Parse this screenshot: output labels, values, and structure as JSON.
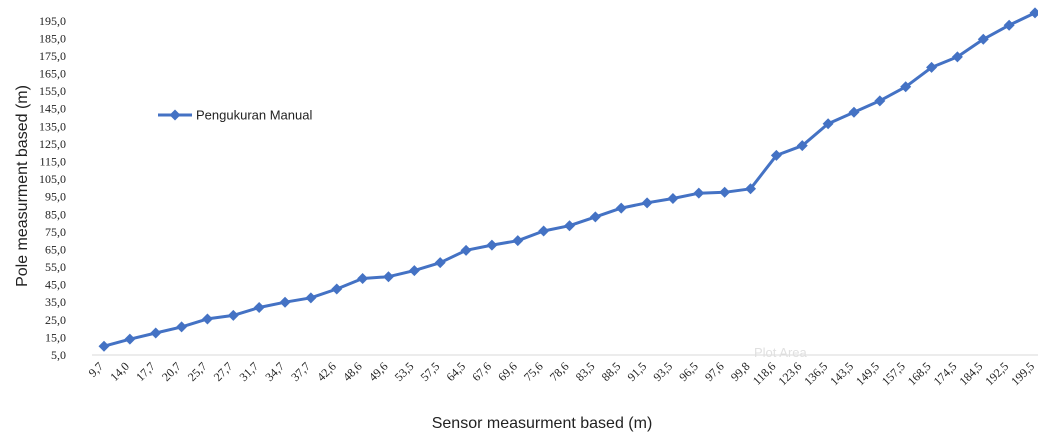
{
  "chart_data": {
    "type": "line",
    "title": "",
    "xlabel": "Sensor measurment based (m)",
    "ylabel": "Pole measurment based (m)",
    "categories": [
      "9,7",
      "14,0",
      "17,7",
      "20,7",
      "25,7",
      "27,7",
      "31,7",
      "34,7",
      "37,7",
      "42,6",
      "48,6",
      "49,6",
      "53,5",
      "57,5",
      "64,5",
      "67,6",
      "69,6",
      "75,6",
      "78,6",
      "83,5",
      "88,5",
      "91,5",
      "93,5",
      "96,5",
      "97,6",
      "99,8",
      "118,6",
      "123,6",
      "136,5",
      "143,5",
      "149,5",
      "157,5",
      "168,5",
      "174,5",
      "184,5",
      "192,5",
      "199,5"
    ],
    "series": [
      {
        "name": "Pengukuran Manual",
        "color": "#4472C4",
        "marker": "diamond",
        "values": [
          10,
          14,
          17.5,
          21,
          25.5,
          27.5,
          32,
          35,
          37.5,
          42.5,
          48.5,
          49.5,
          53,
          57.5,
          64.5,
          67.5,
          70,
          75.5,
          78.5,
          83.5,
          88.5,
          91.5,
          94,
          97,
          97.5,
          99.5,
          118.5,
          124,
          136.5,
          143,
          149.5,
          157.5,
          168.5,
          174.5,
          184.5,
          192.5,
          199.5
        ]
      }
    ],
    "yticks": [
      "5,0",
      "15,0",
      "25,0",
      "35,0",
      "45,0",
      "55,0",
      "65,0",
      "75,0",
      "85,0",
      "95,0",
      "105,0",
      "115,0",
      "125,0",
      "135,0",
      "145,0",
      "155,0",
      "165,0",
      "175,0",
      "185,0",
      "195,0"
    ],
    "ylim": [
      5,
      200
    ],
    "grid": false,
    "legend": "upper-left, inside plot",
    "annotation": "Plot Area"
  }
}
